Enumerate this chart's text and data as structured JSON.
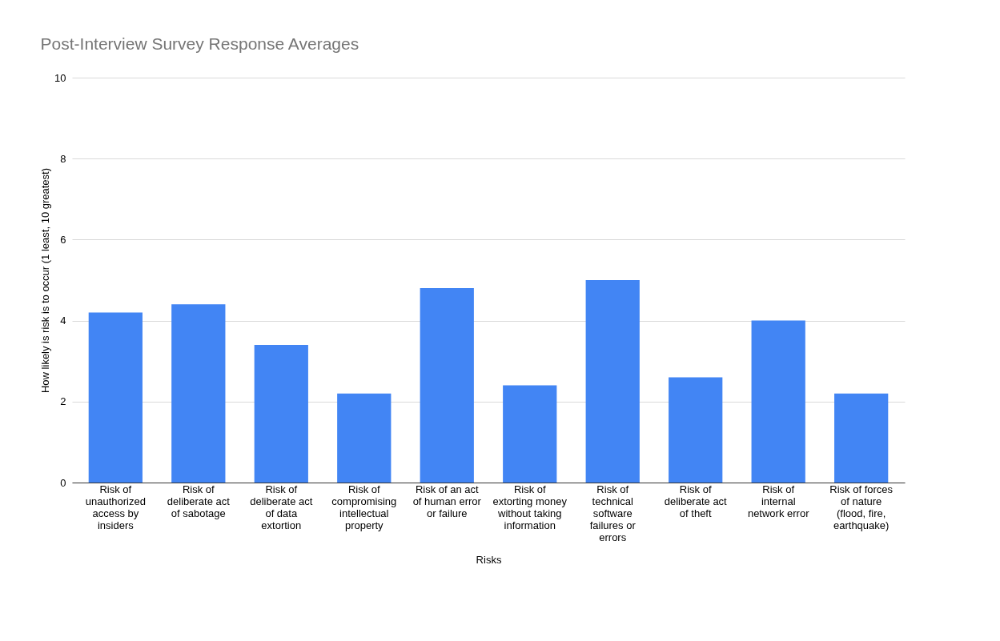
{
  "chart_data": {
    "type": "bar",
    "title": "Post-Interview Survey Response Averages",
    "xlabel": "Risks",
    "ylabel": "How likely is risk is to occur (1 least, 10 greatest)",
    "categories": [
      "Risk of unauthorized access by insiders",
      "Risk of deliberate act of sabotage",
      "Risk of deliberate act of data extortion",
      "Risk of compromising intellectual property",
      "Risk of an act of human error or failure",
      "Risk of extorting money without taking information",
      "Risk of technical software failures or errors",
      "Risk of deliberate act of theft",
      "Risk of internal network error",
      "Risk of forces of nature (flood, fire, earthquake)"
    ],
    "values": [
      4.2,
      4.4,
      3.4,
      2.2,
      4.8,
      2.4,
      5.0,
      2.6,
      4.0,
      2.2
    ],
    "color": "#4285f4",
    "ylim": [
      0,
      10
    ],
    "yticks": [
      0,
      2,
      4,
      6,
      8,
      10
    ],
    "grid": "y"
  }
}
